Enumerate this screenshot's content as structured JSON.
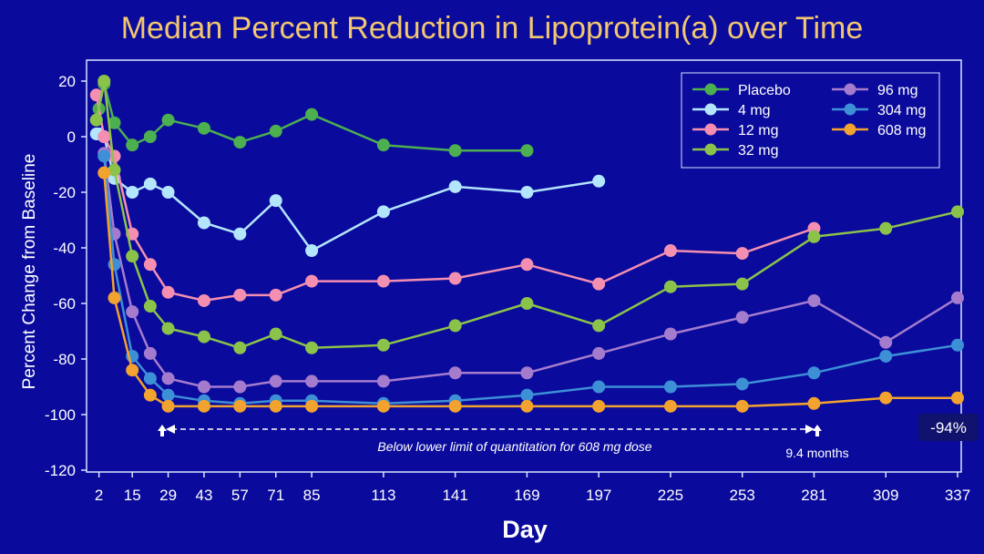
{
  "chart_data": {
    "type": "line",
    "title": "Median Percent Reduction in Lipoprotein(a) over Time",
    "xlabel": "Day",
    "ylabel": "Percent Change from Baseline",
    "xlim": [
      0,
      337
    ],
    "ylim": [
      -120,
      20
    ],
    "x_ticks": [
      2,
      15,
      29,
      43,
      57,
      71,
      85,
      113,
      141,
      169,
      197,
      225,
      253,
      281,
      309,
      337
    ],
    "y_ticks": [
      20,
      0,
      -20,
      -40,
      -60,
      -80,
      -100,
      -120
    ],
    "grid": false,
    "legend_position": "top-right",
    "series": [
      {
        "name": "Placebo",
        "color": "#4caf50",
        "x": [
          1,
          2,
          4,
          8,
          15,
          22,
          29,
          43,
          57,
          71,
          85,
          113,
          141,
          169
        ],
        "y": [
          6,
          10,
          19,
          5,
          -3,
          0,
          6,
          3,
          -2,
          2,
          8,
          -3,
          -5,
          -5
        ]
      },
      {
        "name": "4 mg",
        "color": "#b3e5fc",
        "x": [
          1,
          2,
          4,
          8,
          15,
          22,
          29,
          43,
          57,
          71,
          85,
          113,
          141,
          169,
          197
        ],
        "y": [
          1,
          1,
          0,
          -15,
          -20,
          -17,
          -20,
          -31,
          -35,
          -23,
          -41,
          -27,
          -18,
          -20,
          -16
        ]
      },
      {
        "name": "12 mg",
        "color": "#f48fb1",
        "x": [
          1,
          4,
          8,
          15,
          22,
          29,
          43,
          57,
          71,
          85,
          113,
          141,
          169,
          197,
          225,
          253,
          281
        ],
        "y": [
          15,
          0,
          -7,
          -35,
          -46,
          -56,
          -59,
          -57,
          -57,
          -52,
          -52,
          -51,
          -46,
          -53,
          -41,
          -42,
          -33
        ]
      },
      {
        "name": "32 mg",
        "color": "#8bc34a",
        "x": [
          1,
          4,
          8,
          15,
          22,
          29,
          43,
          57,
          71,
          85,
          113,
          141,
          169,
          197,
          225,
          253,
          281,
          309,
          337
        ],
        "y": [
          6,
          20,
          -12,
          -43,
          -61,
          -69,
          -72,
          -76,
          -71,
          -76,
          -75,
          -68,
          -60,
          -68,
          -54,
          -53,
          -36,
          -33,
          -27
        ]
      },
      {
        "name": "96 mg",
        "color": "#a57ccd",
        "x": [
          4,
          8,
          15,
          22,
          29,
          43,
          57,
          71,
          85,
          113,
          141,
          169,
          197,
          225,
          253,
          281,
          309,
          337
        ],
        "y": [
          -6,
          -35,
          -63,
          -78,
          -87,
          -90,
          -90,
          -88,
          -88,
          -88,
          -85,
          -85,
          -78,
          -71,
          -65,
          -59,
          -74,
          -58
        ]
      },
      {
        "name": "304 mg",
        "color": "#3d8fd6",
        "x": [
          4,
          8,
          15,
          22,
          29,
          43,
          57,
          71,
          85,
          113,
          141,
          169,
          197,
          225,
          253,
          281,
          309,
          337
        ],
        "y": [
          -7,
          -46,
          -79,
          -87,
          -93,
          -95,
          -96,
          -95,
          -95,
          -96,
          -95,
          -93,
          -90,
          -90,
          -89,
          -85,
          -79,
          -75
        ]
      },
      {
        "name": "608 mg",
        "color": "#f2a22e",
        "x": [
          4,
          8,
          15,
          22,
          29,
          43,
          57,
          71,
          85,
          113,
          141,
          169,
          197,
          225,
          253,
          281,
          309,
          337
        ],
        "y": [
          -13,
          -58,
          -84,
          -93,
          -97,
          -97,
          -97,
          -97,
          -97,
          -97,
          -97,
          -97,
          -97,
          -97,
          -97,
          -96,
          -94,
          -94
        ]
      }
    ],
    "annotations": {
      "llq_text": "Below lower limit of quantitation for 608 mg dose",
      "months_text": "9.4 months",
      "final_value": "-94%"
    }
  }
}
